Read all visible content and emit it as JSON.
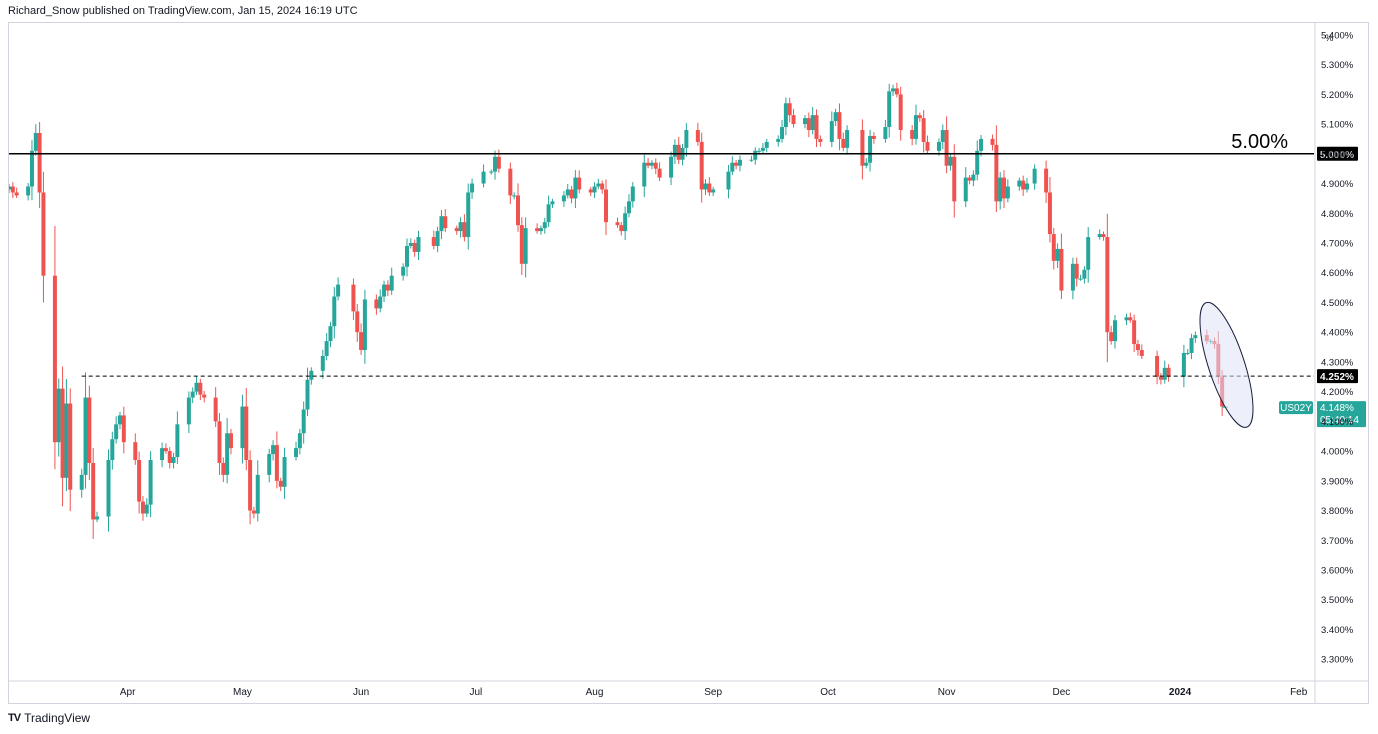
{
  "header": {
    "text": "Richard_Snow published on TradingView.com, Jan 15, 2024 16:19 UTC"
  },
  "footer": {
    "brand": "TradingView",
    "logo": "TV"
  },
  "colors": {
    "up": "#26a69a",
    "down": "#ef5350",
    "line": "#000000",
    "badge": "#26a69a",
    "ellipse_fill": "#dfe3f7",
    "ellipse_stroke": "#1a1f3a"
  },
  "chart_data": {
    "type": "candlestick",
    "symbol": "US02Y",
    "unit": "%",
    "ylim": [
      3.23,
      5.44
    ],
    "yticks": [
      3.3,
      3.4,
      3.5,
      3.6,
      3.7,
      3.8,
      3.9,
      4.0,
      4.1,
      4.2,
      4.3,
      4.4,
      4.5,
      4.6,
      4.7,
      4.8,
      4.9,
      5.0,
      5.1,
      5.2,
      5.3,
      5.4
    ],
    "ytick_labels": [
      "3.300%",
      "3.400%",
      "3.500%",
      "3.600%",
      "3.700%",
      "3.800%",
      "3.900%",
      "4.000%",
      "4.100%",
      "4.200%",
      "4.300%",
      "4.400%",
      "4.500%",
      "4.600%",
      "4.700%",
      "4.800%",
      "4.900%",
      "5.000%",
      "5.100%",
      "5.200%",
      "5.300%",
      "5.400%"
    ],
    "x_range": [
      "2023-03-01",
      "2024-02-05"
    ],
    "x_ticks": [
      {
        "date": "2023-04-01",
        "label": "Apr",
        "bold": false
      },
      {
        "date": "2023-05-01",
        "label": "May",
        "bold": false
      },
      {
        "date": "2023-06-01",
        "label": "Jun",
        "bold": false
      },
      {
        "date": "2023-07-01",
        "label": "Jul",
        "bold": false
      },
      {
        "date": "2023-08-01",
        "label": "Aug",
        "bold": false
      },
      {
        "date": "2023-09-01",
        "label": "Sep",
        "bold": false
      },
      {
        "date": "2023-10-01",
        "label": "Oct",
        "bold": false
      },
      {
        "date": "2023-11-01",
        "label": "Nov",
        "bold": false
      },
      {
        "date": "2023-12-01",
        "label": "Dec",
        "bold": false
      },
      {
        "date": "2024-01-01",
        "label": "2024",
        "bold": true
      },
      {
        "date": "2024-02-01",
        "label": "Feb",
        "bold": false
      }
    ],
    "horizontal_lines": [
      {
        "value": 5.0,
        "style": "solid",
        "label": "5.00%",
        "axis_label": "5.000%"
      },
      {
        "value": 4.252,
        "style": "dashed",
        "start": "2023-03-20",
        "axis_label": "4.252%"
      }
    ],
    "last_price": {
      "value": 4.148,
      "label": "4.148%",
      "symbol": "US02Y",
      "countdown": "05:40:14"
    },
    "annotation_ellipse": {
      "from": "2024-01-05",
      "to": "2024-01-15",
      "low": 4.09,
      "high": 4.49
    },
    "axis_unit_label": "%",
    "candles_daily_close": [
      [
        "2023-03-01",
        4.89
      ],
      [
        "2023-03-02",
        4.87
      ],
      [
        "2023-03-03",
        4.86
      ],
      [
        "2023-03-06",
        4.89
      ],
      [
        "2023-03-07",
        5.01
      ],
      [
        "2023-03-08",
        5.07
      ],
      [
        "2023-03-09",
        4.87
      ],
      [
        "2023-03-10",
        4.59
      ],
      [
        "2023-03-13",
        4.03
      ],
      [
        "2023-03-14",
        4.21
      ],
      [
        "2023-03-15",
        3.91
      ],
      [
        "2023-03-16",
        4.16
      ],
      [
        "2023-03-17",
        3.87
      ],
      [
        "2023-03-20",
        3.92
      ],
      [
        "2023-03-21",
        4.18
      ],
      [
        "2023-03-22",
        3.96
      ],
      [
        "2023-03-23",
        3.77
      ],
      [
        "2023-03-24",
        3.78
      ],
      [
        "2023-03-27",
        3.97
      ],
      [
        "2023-03-28",
        4.04
      ],
      [
        "2023-03-29",
        4.09
      ],
      [
        "2023-03-30",
        4.12
      ],
      [
        "2023-03-31",
        4.03
      ],
      [
        "2023-04-03",
        3.97
      ],
      [
        "2023-04-04",
        3.83
      ],
      [
        "2023-04-05",
        3.79
      ],
      [
        "2023-04-06",
        3.82
      ],
      [
        "2023-04-07",
        3.97
      ],
      [
        "2023-04-10",
        4.01
      ],
      [
        "2023-04-11",
        4.0
      ],
      [
        "2023-04-12",
        3.96
      ],
      [
        "2023-04-13",
        3.98
      ],
      [
        "2023-04-14",
        4.09
      ],
      [
        "2023-04-17",
        4.18
      ],
      [
        "2023-04-18",
        4.2
      ],
      [
        "2023-04-19",
        4.23
      ],
      [
        "2023-04-20",
        4.19
      ],
      [
        "2023-04-21",
        4.18
      ],
      [
        "2023-04-24",
        4.1
      ],
      [
        "2023-04-25",
        3.96
      ],
      [
        "2023-04-26",
        3.92
      ],
      [
        "2023-04-27",
        4.06
      ],
      [
        "2023-04-28",
        4.01
      ],
      [
        "2023-05-01",
        4.15
      ],
      [
        "2023-05-02",
        3.97
      ],
      [
        "2023-05-03",
        3.8
      ],
      [
        "2023-05-04",
        3.79
      ],
      [
        "2023-05-05",
        3.92
      ],
      [
        "2023-05-08",
        3.99
      ],
      [
        "2023-05-09",
        4.02
      ],
      [
        "2023-05-10",
        3.9
      ],
      [
        "2023-05-11",
        3.88
      ],
      [
        "2023-05-12",
        3.98
      ],
      [
        "2023-05-15",
        4.01
      ],
      [
        "2023-05-16",
        4.06
      ],
      [
        "2023-05-17",
        4.14
      ],
      [
        "2023-05-18",
        4.24
      ],
      [
        "2023-05-19",
        4.27
      ],
      [
        "2023-05-22",
        4.32
      ],
      [
        "2023-05-23",
        4.37
      ],
      [
        "2023-05-24",
        4.42
      ],
      [
        "2023-05-25",
        4.52
      ],
      [
        "2023-05-26",
        4.56
      ],
      [
        "2023-05-30",
        4.47
      ],
      [
        "2023-05-31",
        4.4
      ],
      [
        "2023-06-01",
        4.34
      ],
      [
        "2023-06-02",
        4.51
      ],
      [
        "2023-06-05",
        4.48
      ],
      [
        "2023-06-06",
        4.52
      ],
      [
        "2023-06-07",
        4.56
      ],
      [
        "2023-06-08",
        4.54
      ],
      [
        "2023-06-09",
        4.59
      ],
      [
        "2023-06-12",
        4.62
      ],
      [
        "2023-06-13",
        4.69
      ],
      [
        "2023-06-14",
        4.7
      ],
      [
        "2023-06-15",
        4.67
      ],
      [
        "2023-06-16",
        4.72
      ],
      [
        "2023-06-20",
        4.69
      ],
      [
        "2023-06-21",
        4.74
      ],
      [
        "2023-06-22",
        4.79
      ],
      [
        "2023-06-23",
        4.75
      ],
      [
        "2023-06-26",
        4.74
      ],
      [
        "2023-06-27",
        4.77
      ],
      [
        "2023-06-28",
        4.72
      ],
      [
        "2023-06-29",
        4.87
      ],
      [
        "2023-06-30",
        4.9
      ],
      [
        "2023-07-03",
        4.94
      ],
      [
        "2023-07-05",
        4.94
      ],
      [
        "2023-07-06",
        4.99
      ],
      [
        "2023-07-07",
        4.95
      ],
      [
        "2023-07-10",
        4.86
      ],
      [
        "2023-07-11",
        4.86
      ],
      [
        "2023-07-12",
        4.76
      ],
      [
        "2023-07-13",
        4.63
      ],
      [
        "2023-07-14",
        4.75
      ],
      [
        "2023-07-17",
        4.74
      ],
      [
        "2023-07-18",
        4.75
      ],
      [
        "2023-07-19",
        4.77
      ],
      [
        "2023-07-20",
        4.83
      ],
      [
        "2023-07-21",
        4.84
      ],
      [
        "2023-07-24",
        4.86
      ],
      [
        "2023-07-25",
        4.88
      ],
      [
        "2023-07-26",
        4.85
      ],
      [
        "2023-07-27",
        4.92
      ],
      [
        "2023-07-28",
        4.88
      ],
      [
        "2023-07-31",
        4.87
      ],
      [
        "2023-08-01",
        4.89
      ],
      [
        "2023-08-02",
        4.9
      ],
      [
        "2023-08-03",
        4.88
      ],
      [
        "2023-08-04",
        4.77
      ],
      [
        "2023-08-07",
        4.76
      ],
      [
        "2023-08-08",
        4.74
      ],
      [
        "2023-08-09",
        4.8
      ],
      [
        "2023-08-10",
        4.84
      ],
      [
        "2023-08-11",
        4.89
      ],
      [
        "2023-08-14",
        4.97
      ],
      [
        "2023-08-15",
        4.96
      ],
      [
        "2023-08-16",
        4.97
      ],
      [
        "2023-08-17",
        4.95
      ],
      [
        "2023-08-18",
        4.92
      ],
      [
        "2023-08-21",
        4.99
      ],
      [
        "2023-08-22",
        5.03
      ],
      [
        "2023-08-23",
        4.98
      ],
      [
        "2023-08-24",
        5.02
      ],
      [
        "2023-08-25",
        5.08
      ],
      [
        "2023-08-28",
        5.04
      ],
      [
        "2023-08-29",
        4.88
      ],
      [
        "2023-08-30",
        4.9
      ],
      [
        "2023-08-31",
        4.87
      ],
      [
        "2023-09-01",
        4.88
      ],
      [
        "2023-09-05",
        4.94
      ],
      [
        "2023-09-06",
        4.97
      ],
      [
        "2023-09-07",
        4.96
      ],
      [
        "2023-09-08",
        4.98
      ],
      [
        "2023-09-11",
        4.98
      ],
      [
        "2023-09-12",
        5.01
      ],
      [
        "2023-09-13",
        5.01
      ],
      [
        "2023-09-14",
        5.02
      ],
      [
        "2023-09-15",
        5.04
      ],
      [
        "2023-09-18",
        5.05
      ],
      [
        "2023-09-19",
        5.09
      ],
      [
        "2023-09-20",
        5.17
      ],
      [
        "2023-09-21",
        5.13
      ],
      [
        "2023-09-22",
        5.1
      ],
      [
        "2023-09-25",
        5.12
      ],
      [
        "2023-09-26",
        5.08
      ],
      [
        "2023-09-27",
        5.13
      ],
      [
        "2023-09-28",
        5.05
      ],
      [
        "2023-09-29",
        5.04
      ],
      [
        "2023-10-02",
        5.11
      ],
      [
        "2023-10-03",
        5.14
      ],
      [
        "2023-10-04",
        5.05
      ],
      [
        "2023-10-05",
        5.02
      ],
      [
        "2023-10-06",
        5.08
      ],
      [
        "2023-10-10",
        4.96
      ],
      [
        "2023-10-11",
        4.97
      ],
      [
        "2023-10-12",
        5.06
      ],
      [
        "2023-10-13",
        5.05
      ],
      [
        "2023-10-16",
        5.09
      ],
      [
        "2023-10-17",
        5.21
      ],
      [
        "2023-10-18",
        5.22
      ],
      [
        "2023-10-19",
        5.2
      ],
      [
        "2023-10-20",
        5.08
      ],
      [
        "2023-10-23",
        5.05
      ],
      [
        "2023-10-24",
        5.13
      ],
      [
        "2023-10-25",
        5.12
      ],
      [
        "2023-10-26",
        5.04
      ],
      [
        "2023-10-27",
        5.01
      ],
      [
        "2023-10-30",
        5.04
      ],
      [
        "2023-10-31",
        5.08
      ],
      [
        "2023-11-01",
        4.96
      ],
      [
        "2023-11-02",
        4.99
      ],
      [
        "2023-11-03",
        4.84
      ],
      [
        "2023-11-06",
        4.92
      ],
      [
        "2023-11-07",
        4.91
      ],
      [
        "2023-11-08",
        4.93
      ],
      [
        "2023-11-09",
        5.01
      ],
      [
        "2023-11-10",
        5.05
      ],
      [
        "2023-11-13",
        5.03
      ],
      [
        "2023-11-14",
        4.84
      ],
      [
        "2023-11-15",
        4.92
      ],
      [
        "2023-11-16",
        4.85
      ],
      [
        "2023-11-17",
        4.89
      ],
      [
        "2023-11-20",
        4.91
      ],
      [
        "2023-11-21",
        4.88
      ],
      [
        "2023-11-22",
        4.9
      ],
      [
        "2023-11-24",
        4.95
      ],
      [
        "2023-11-27",
        4.87
      ],
      [
        "2023-11-28",
        4.73
      ],
      [
        "2023-11-29",
        4.64
      ],
      [
        "2023-11-30",
        4.68
      ],
      [
        "2023-12-01",
        4.54
      ],
      [
        "2023-12-04",
        4.63
      ],
      [
        "2023-12-05",
        4.58
      ],
      [
        "2023-12-06",
        4.58
      ],
      [
        "2023-12-07",
        4.61
      ],
      [
        "2023-12-08",
        4.72
      ],
      [
        "2023-12-11",
        4.73
      ],
      [
        "2023-12-12",
        4.72
      ],
      [
        "2023-12-13",
        4.4
      ],
      [
        "2023-12-14",
        4.37
      ],
      [
        "2023-12-15",
        4.44
      ],
      [
        "2023-12-18",
        4.45
      ],
      [
        "2023-12-19",
        4.44
      ],
      [
        "2023-12-20",
        4.36
      ],
      [
        "2023-12-21",
        4.34
      ],
      [
        "2023-12-22",
        4.32
      ],
      [
        "2023-12-26",
        4.25
      ],
      [
        "2023-12-27",
        4.24
      ],
      [
        "2023-12-28",
        4.28
      ],
      [
        "2023-12-29",
        4.25
      ],
      [
        "2024-01-02",
        4.33
      ],
      [
        "2024-01-03",
        4.33
      ],
      [
        "2024-01-04",
        4.38
      ],
      [
        "2024-01-05",
        4.39
      ],
      [
        "2024-01-08",
        4.37
      ],
      [
        "2024-01-09",
        4.37
      ],
      [
        "2024-01-10",
        4.36
      ],
      [
        "2024-01-11",
        4.25
      ],
      [
        "2024-01-12",
        4.15
      ]
    ]
  }
}
